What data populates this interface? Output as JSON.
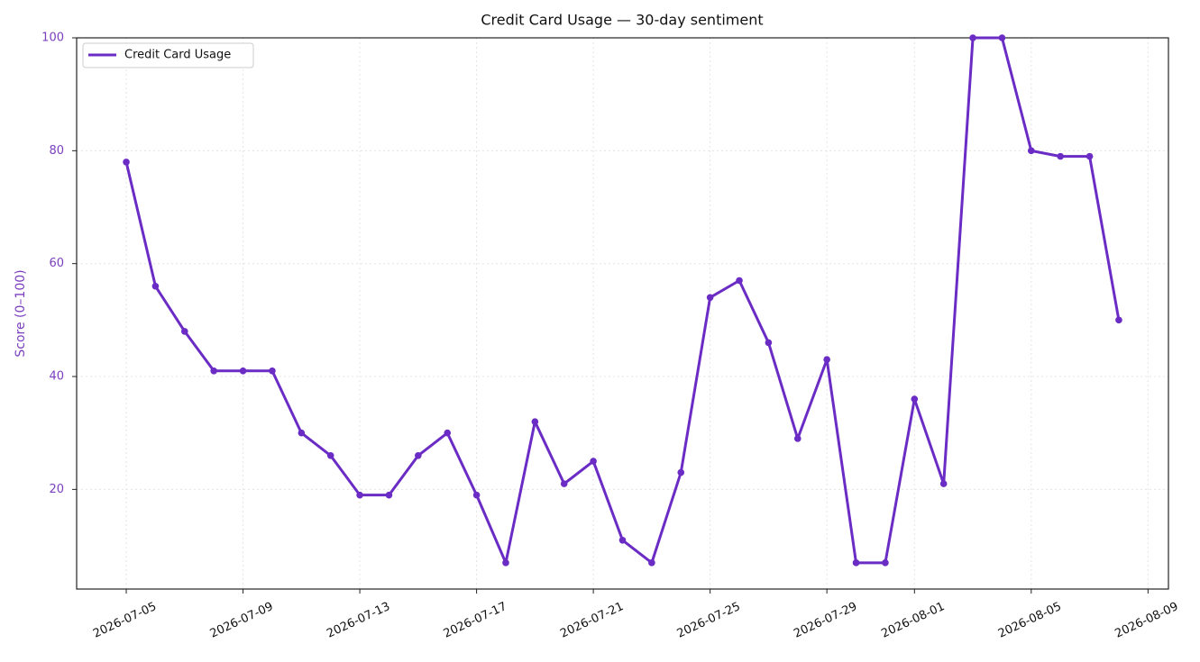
{
  "chart_data": {
    "type": "line",
    "title": "Credit Card Usage — 30-day sentiment",
    "y_label": "Score (0–100)",
    "x": [
      "2026-07-05",
      "2026-07-06",
      "2026-07-07",
      "2026-07-08",
      "2026-07-09",
      "2026-07-10",
      "2026-07-11",
      "2026-07-12",
      "2026-07-13",
      "2026-07-14",
      "2026-07-15",
      "2026-07-16",
      "2026-07-17",
      "2026-07-18",
      "2026-07-19",
      "2026-07-20",
      "2026-07-21",
      "2026-07-22",
      "2026-07-23",
      "2026-07-24",
      "2026-07-25",
      "2026-07-26",
      "2026-07-27",
      "2026-07-28",
      "2026-07-29",
      "2026-07-30",
      "2026-07-31",
      "2026-08-01",
      "2026-08-02",
      "2026-08-03",
      "2026-08-04",
      "2026-08-05",
      "2026-08-06",
      "2026-08-07",
      "2026-08-08"
    ],
    "series": [
      {
        "name": "Credit Card Usage",
        "color": "#6a2cc4",
        "values": [
          78,
          56,
          48,
          41,
          41,
          41,
          30,
          26,
          19,
          19,
          26,
          30,
          19,
          7,
          32,
          21,
          25,
          11,
          7,
          23,
          54,
          57,
          46,
          29,
          43,
          7,
          7,
          36,
          21,
          100,
          100,
          80,
          79,
          79,
          50
        ]
      }
    ],
    "xlim": [
      "2026-07-03T07:12:00Z",
      "2026-08-09T16:48:00Z"
    ],
    "xticks": [
      "2026-07-05",
      "2026-07-09",
      "2026-07-13",
      "2026-07-17",
      "2026-07-21",
      "2026-07-25",
      "2026-07-29",
      "2026-08-01",
      "2026-08-05",
      "2026-08-09"
    ],
    "ylim": [
      2.35,
      100
    ],
    "yticks": [
      20,
      40,
      60,
      80,
      100
    ],
    "grid": true,
    "legend": "upper left"
  }
}
